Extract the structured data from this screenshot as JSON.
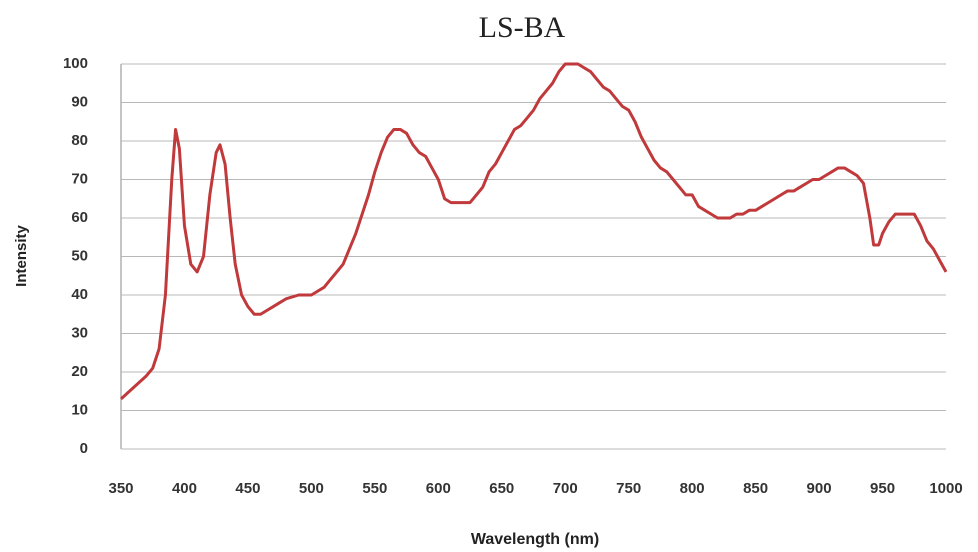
{
  "chart_data": {
    "type": "line",
    "title": "LS-BA",
    "xlabel": "Wavelength (nm)",
    "ylabel": "Intensity",
    "x": [
      350,
      360,
      370,
      375,
      380,
      385,
      390,
      393,
      396,
      400,
      405,
      410,
      415,
      420,
      425,
      428,
      432,
      436,
      440,
      445,
      450,
      455,
      460,
      465,
      470,
      475,
      480,
      490,
      500,
      505,
      510,
      515,
      520,
      525,
      530,
      535,
      540,
      545,
      550,
      555,
      560,
      565,
      570,
      575,
      580,
      585,
      590,
      595,
      600,
      605,
      610,
      615,
      620,
      625,
      630,
      635,
      640,
      645,
      650,
      655,
      660,
      665,
      670,
      675,
      680,
      685,
      690,
      695,
      700,
      705,
      710,
      715,
      720,
      725,
      730,
      735,
      740,
      745,
      750,
      755,
      760,
      765,
      770,
      775,
      780,
      785,
      790,
      795,
      800,
      805,
      810,
      815,
      820,
      825,
      830,
      835,
      840,
      845,
      850,
      855,
      860,
      865,
      870,
      875,
      880,
      885,
      890,
      895,
      900,
      905,
      910,
      915,
      920,
      925,
      930,
      935,
      940,
      943,
      947,
      950,
      955,
      960,
      965,
      970,
      975,
      980,
      985,
      990,
      995,
      1000
    ],
    "values": [
      13,
      16,
      19,
      21,
      26,
      40,
      70,
      83,
      78,
      58,
      48,
      46,
      50,
      66,
      77,
      79,
      74,
      60,
      48,
      40,
      37,
      35,
      35,
      36,
      37,
      38,
      39,
      40,
      40,
      41,
      42,
      44,
      46,
      48,
      52,
      56,
      61,
      66,
      72,
      77,
      81,
      83,
      83,
      82,
      79,
      77,
      76,
      73,
      70,
      65,
      64,
      64,
      64,
      64,
      66,
      68,
      72,
      74,
      77,
      80,
      83,
      84,
      86,
      88,
      91,
      93,
      95,
      98,
      100,
      100,
      100,
      99,
      98,
      96,
      94,
      93,
      91,
      89,
      88,
      85,
      81,
      78,
      75,
      73,
      72,
      70,
      68,
      66,
      66,
      63,
      62,
      61,
      60,
      60,
      60,
      61,
      61,
      62,
      62,
      63,
      64,
      65,
      66,
      67,
      67,
      68,
      69,
      70,
      70,
      71,
      72,
      73,
      73,
      72,
      71,
      69,
      60,
      53,
      53,
      56,
      59,
      61,
      61,
      61,
      61,
      58,
      54,
      52,
      49,
      46
    ],
    "color": "#c0393b",
    "xlim": [
      350,
      1000
    ],
    "xticks": [
      350,
      400,
      450,
      500,
      550,
      600,
      650,
      700,
      750,
      800,
      850,
      900,
      950,
      1000
    ],
    "ylim": [
      0,
      100
    ],
    "yticks": [
      0,
      10,
      20,
      30,
      40,
      50,
      60,
      70,
      80,
      90,
      100
    ],
    "grid": true
  }
}
